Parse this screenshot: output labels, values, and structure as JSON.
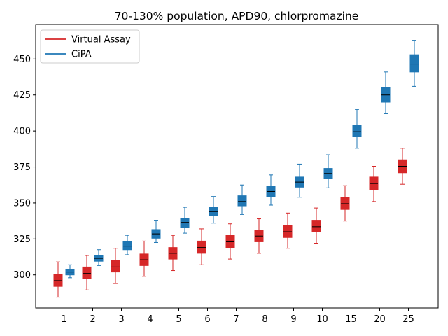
{
  "chart_data": {
    "type": "box",
    "title": "70-130% population, APD90, chlorpromazine",
    "xlabel": "",
    "ylabel": "",
    "categories": [
      "1",
      "2",
      "3",
      "4",
      "5",
      "6",
      "7",
      "8",
      "9",
      "10",
      "15",
      "20",
      "25"
    ],
    "ylim": [
      277,
      474
    ],
    "yticks": [
      300,
      325,
      350,
      375,
      400,
      425,
      450
    ],
    "grid": false,
    "legend_position": "top-left",
    "series": [
      {
        "name": "Virtual Assay",
        "color": "#d62728",
        "boxes": [
          {
            "whisker_low": 284.5,
            "q1": 292,
            "median": 296,
            "q3": 300.5,
            "whisker_high": 309
          },
          {
            "whisker_low": 289.5,
            "q1": 297.5,
            "median": 301,
            "q3": 305.5,
            "whisker_high": 313.5
          },
          {
            "whisker_low": 294,
            "q1": 302,
            "median": 305.5,
            "q3": 310,
            "whisker_high": 318.5
          },
          {
            "whisker_low": 299,
            "q1": 306.5,
            "median": 310.5,
            "q3": 314.5,
            "whisker_high": 323.5
          },
          {
            "whisker_low": 303,
            "q1": 311,
            "median": 315,
            "q3": 319,
            "whisker_high": 327.5
          },
          {
            "whisker_low": 307,
            "q1": 315,
            "median": 319,
            "q3": 323.5,
            "whisker_high": 332
          },
          {
            "whisker_low": 311,
            "q1": 319,
            "median": 323,
            "q3": 327.5,
            "whisker_high": 335.5
          },
          {
            "whisker_low": 315,
            "q1": 323,
            "median": 327,
            "q3": 331,
            "whisker_high": 339
          },
          {
            "whisker_low": 318.5,
            "q1": 326,
            "median": 330,
            "q3": 334.5,
            "whisker_high": 343
          },
          {
            "whisker_low": 322,
            "q1": 330,
            "median": 333.5,
            "q3": 338,
            "whisker_high": 346.5
          },
          {
            "whisker_low": 337.5,
            "q1": 345.5,
            "median": 349.5,
            "q3": 354,
            "whisker_high": 362
          },
          {
            "whisker_low": 351,
            "q1": 359,
            "median": 363.5,
            "q3": 368,
            "whisker_high": 375.5
          },
          {
            "whisker_low": 363,
            "q1": 371,
            "median": 375.5,
            "q3": 380,
            "whisker_high": 388
          }
        ]
      },
      {
        "name": "CiPA",
        "color": "#1f77b4",
        "boxes": [
          {
            "whisker_low": 298,
            "q1": 300,
            "median": 302,
            "q3": 304,
            "whisker_high": 307
          },
          {
            "whisker_low": 306.5,
            "q1": 309.5,
            "median": 311.5,
            "q3": 313.5,
            "whisker_high": 317.5
          },
          {
            "whisker_low": 314,
            "q1": 317.5,
            "median": 320,
            "q3": 323,
            "whisker_high": 327.5
          },
          {
            "whisker_low": 322.5,
            "q1": 325.5,
            "median": 328.5,
            "q3": 331.5,
            "whisker_high": 338
          },
          {
            "whisker_low": 329,
            "q1": 333,
            "median": 336.5,
            "q3": 339.5,
            "whisker_high": 347
          },
          {
            "whisker_low": 336,
            "q1": 341,
            "median": 344,
            "q3": 347,
            "whisker_high": 354.5
          },
          {
            "whisker_low": 342,
            "q1": 348,
            "median": 351,
            "q3": 355,
            "whisker_high": 362.5
          },
          {
            "whisker_low": 348.5,
            "q1": 354.5,
            "median": 358,
            "q3": 361.5,
            "whisker_high": 369.5
          },
          {
            "whisker_low": 354,
            "q1": 361,
            "median": 364.5,
            "q3": 368,
            "whisker_high": 377
          },
          {
            "whisker_low": 360.5,
            "q1": 367,
            "median": 370.5,
            "q3": 374,
            "whisker_high": 383.5
          },
          {
            "whisker_low": 388,
            "q1": 396,
            "median": 399.5,
            "q3": 404,
            "whisker_high": 415
          },
          {
            "whisker_low": 412,
            "q1": 420,
            "median": 425,
            "q3": 430,
            "whisker_high": 441
          },
          {
            "whisker_low": 431,
            "q1": 441,
            "median": 446.5,
            "q3": 453,
            "whisker_high": 463
          }
        ]
      }
    ]
  }
}
